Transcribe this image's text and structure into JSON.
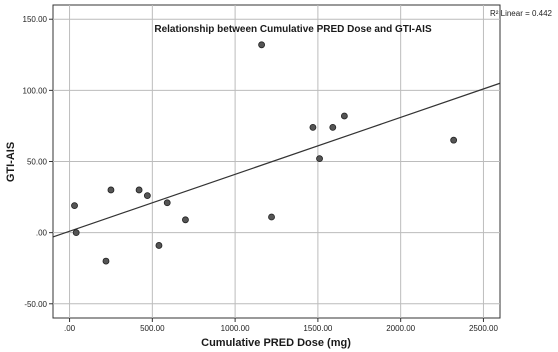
{
  "chart_data": {
    "type": "scatter",
    "title": "Relationship between Cumulative PRED Dose and GTI-AIS",
    "xlabel": "Cumulative PRED Dose (mg)",
    "ylabel": "GTI-AIS",
    "xlim": [
      -100,
      2600
    ],
    "ylim": [
      -60,
      160
    ],
    "xticks": [
      0,
      500,
      1000,
      1500,
      2000,
      2500
    ],
    "xtick_labels": [
      ".00",
      "500.00",
      "1000.00",
      "1500.00",
      "2000.00",
      "2500.00"
    ],
    "yticks": [
      -50,
      0,
      50,
      100,
      150
    ],
    "ytick_labels": [
      "-50.00",
      ".00",
      "50.00",
      "100.00",
      "150.00"
    ],
    "grid": true,
    "points": [
      {
        "x": 30,
        "y": 19
      },
      {
        "x": 40,
        "y": 0
      },
      {
        "x": 220,
        "y": -20
      },
      {
        "x": 250,
        "y": 30
      },
      {
        "x": 420,
        "y": 30
      },
      {
        "x": 470,
        "y": 26
      },
      {
        "x": 540,
        "y": -9
      },
      {
        "x": 590,
        "y": 21
      },
      {
        "x": 700,
        "y": 9
      },
      {
        "x": 1160,
        "y": 132
      },
      {
        "x": 1220,
        "y": 11
      },
      {
        "x": 1470,
        "y": 74
      },
      {
        "x": 1510,
        "y": 52
      },
      {
        "x": 1590,
        "y": 74
      },
      {
        "x": 1660,
        "y": 82
      },
      {
        "x": 2320,
        "y": 65
      }
    ],
    "fit_line": {
      "x": [
        -100,
        2600
      ],
      "y": [
        -3,
        105
      ]
    },
    "r2_label": "R² Linear = 0.442",
    "colors": {
      "marker_fill": "#555555",
      "marker_stroke": "#222222",
      "line": "#333333",
      "grid": "#bcbcbc",
      "axis": "#333333"
    }
  }
}
